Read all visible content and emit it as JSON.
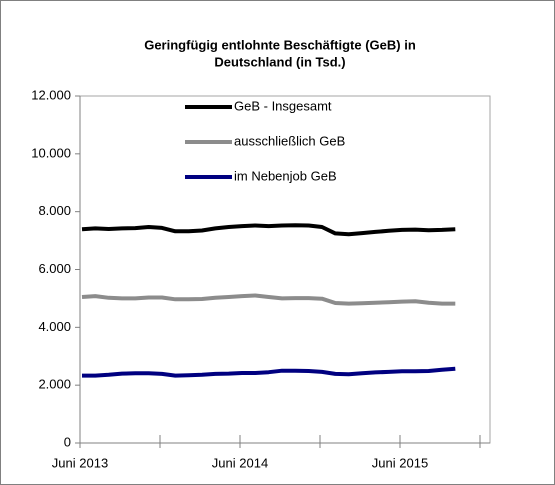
{
  "chart_data": {
    "type": "line",
    "title": [
      "Geringfügig entlohnte Beschäftigte  (GeB) in",
      "Deutschland (in Tsd.)"
    ],
    "categories": [
      "Juni 2013",
      null,
      null,
      null,
      null,
      null,
      null,
      null,
      null,
      null,
      null,
      null,
      "Juni 2014",
      null,
      null,
      null,
      null,
      null,
      null,
      null,
      null,
      null,
      null,
      null,
      "Juni 2015",
      null,
      null,
      null,
      null,
      null,
      null
    ],
    "series": [
      {
        "name": "GeB - Insgesamt",
        "color": "#000000",
        "values": [
          7390,
          7420,
          7400,
          7420,
          7430,
          7470,
          7440,
          7320,
          7320,
          7350,
          7420,
          7470,
          7500,
          7520,
          7500,
          7520,
          7530,
          7520,
          7470,
          7250,
          7220,
          7260,
          7300,
          7340,
          7370,
          7380,
          7360,
          7370,
          7390,
          null,
          null
        ]
      },
      {
        "name": "ausschließlich GeB",
        "color": "#8c8c8c",
        "values": [
          5050,
          5080,
          5020,
          5000,
          5000,
          5030,
          5030,
          4970,
          4970,
          4980,
          5020,
          5050,
          5080,
          5100,
          5050,
          5000,
          5010,
          5010,
          4990,
          4840,
          4820,
          4830,
          4850,
          4870,
          4890,
          4900,
          4850,
          4820,
          4820,
          null,
          null
        ]
      },
      {
        "name": "im Nebenjob GeB",
        "color": "#000080",
        "values": [
          2330,
          2330,
          2360,
          2400,
          2410,
          2410,
          2390,
          2330,
          2340,
          2360,
          2390,
          2400,
          2420,
          2420,
          2450,
          2500,
          2500,
          2490,
          2460,
          2390,
          2380,
          2410,
          2440,
          2460,
          2480,
          2480,
          2490,
          2530,
          2570,
          null,
          null
        ]
      }
    ],
    "ylim": [
      0,
      12000
    ],
    "yticks": [
      0,
      {
        "value": 2000,
        "label": "2.000"
      },
      {
        "value": 4000,
        "label": "4.000"
      },
      {
        "value": 6000,
        "label": "6.000"
      },
      {
        "value": 8000,
        "label": "8.000"
      },
      {
        "value": 10000,
        "label": "10.000"
      },
      {
        "value": 12000,
        "label": "12.000"
      }
    ],
    "grid": false,
    "legend": "top"
  }
}
